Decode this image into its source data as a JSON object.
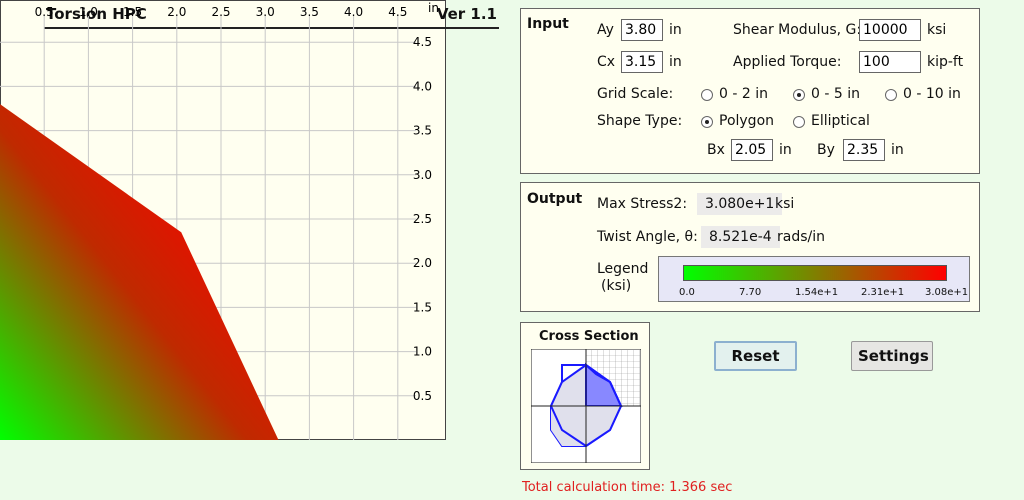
{
  "header": {
    "title": "Torsion HPC",
    "version": "Ver 1.1"
  },
  "plot": {
    "unit": "in",
    "x_ticks": [
      "0.5",
      "1.0",
      "1.5",
      "2.0",
      "2.5",
      "3.0",
      "3.5",
      "4.0",
      "4.5"
    ],
    "y_ticks": [
      "4.5",
      "4.0",
      "3.5",
      "3.0",
      "2.5",
      "2.0",
      "1.5",
      "1.0",
      "0.5"
    ],
    "grid_range": [
      0,
      5
    ],
    "shape_vertices_in": [
      [
        0,
        3.8
      ],
      [
        2.05,
        2.35
      ],
      [
        3.15,
        0
      ],
      [
        0,
        0
      ]
    ]
  },
  "input": {
    "title": "Input",
    "ay": {
      "label": "Ay",
      "value": "3.80",
      "unit": "in"
    },
    "cx": {
      "label": "Cx",
      "value": "3.15",
      "unit": "in"
    },
    "shear_modulus": {
      "label": "Shear Modulus, G:",
      "value": "10000",
      "unit": "ksi"
    },
    "torque": {
      "label": "Applied Torque:",
      "value": "100",
      "unit": "kip-ft"
    },
    "grid_scale": {
      "label": "Grid Scale:",
      "options": [
        "0 - 2 in",
        "0 - 5 in",
        "0 - 10 in"
      ],
      "selected": "0 - 5 in"
    },
    "shape_type": {
      "label": "Shape Type:",
      "options": [
        "Polygon",
        "Elliptical"
      ],
      "selected": "Polygon"
    },
    "bx": {
      "label": "Bx",
      "value": "2.05",
      "unit": "in"
    },
    "by": {
      "label": "By",
      "value": "2.35",
      "unit": "in"
    }
  },
  "output": {
    "title": "Output",
    "max_stress": {
      "label": "Max Stress2:",
      "value": "3.080e+1",
      "unit": "ksi"
    },
    "twist": {
      "label": "Twist Angle, θ:",
      "value": "8.521e-4",
      "unit": "rads/in"
    },
    "legend": {
      "label_line1": "Legend",
      "label_line2": "(ksi)",
      "ticks": [
        "0.0",
        "7.70",
        "1.54e+1",
        "2.31e+1",
        "3.08e+1"
      ],
      "color_low": "#00ff00",
      "color_high": "#ff0000"
    }
  },
  "cross_section": {
    "title": "Cross Section"
  },
  "buttons": {
    "reset": "Reset",
    "settings": "Settings"
  },
  "status": {
    "calc_time": "Total calculation time: 1.366 sec",
    "color": "#e02020"
  }
}
